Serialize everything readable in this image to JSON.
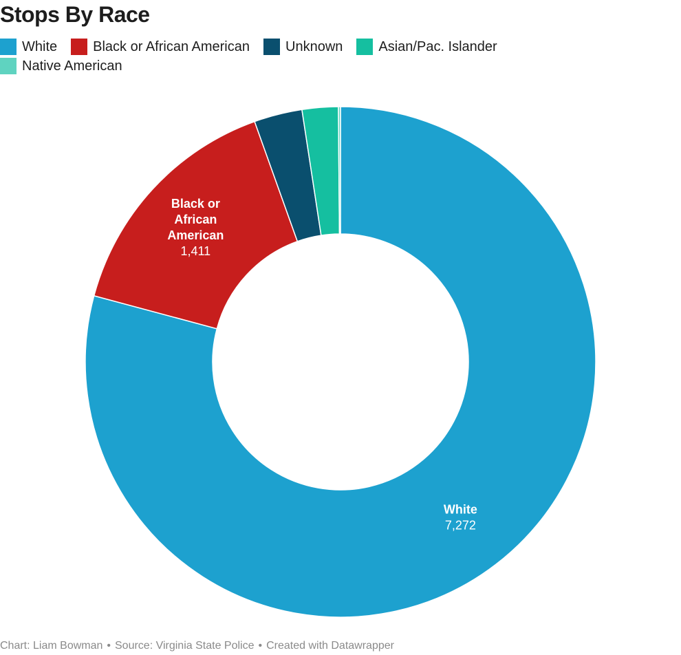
{
  "title": "Stops By Race",
  "footer": {
    "chart_credit": "Chart: Liam Bowman",
    "source": "Source: Virginia State Police",
    "created_with": "Created with Datawrapper",
    "separator": "•"
  },
  "chart_data": {
    "type": "pie",
    "variant": "donut",
    "title": "Stops By Race",
    "legend_position": "top-left",
    "categories": [
      "White",
      "Black or African American",
      "Unknown",
      "Asian/Pac. Islander",
      "Native American"
    ],
    "values": [
      7272,
      1411,
      280,
      210,
      12
    ],
    "colors": [
      "#1da1cf",
      "#c71e1d",
      "#0a4f6e",
      "#15bfa0",
      "#5fd3c0"
    ],
    "data_labels": [
      {
        "name": "White",
        "value": "7,272"
      },
      {
        "name": "Black or African American",
        "value": "1,411"
      }
    ]
  }
}
